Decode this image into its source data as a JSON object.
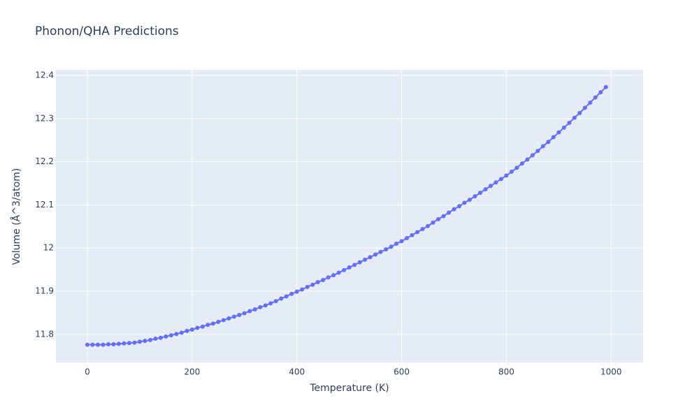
{
  "chart_data": {
    "type": "line",
    "title": "Phonon/QHA Predictions",
    "x_label": "Temperature (K)",
    "y_label": "Volume (Å^3/atom)",
    "x": [
      0,
      10,
      20,
      30,
      40,
      50,
      60,
      70,
      80,
      90,
      100,
      110,
      120,
      130,
      140,
      150,
      160,
      170,
      180,
      190,
      200,
      210,
      220,
      230,
      240,
      250,
      260,
      270,
      280,
      290,
      300,
      310,
      320,
      330,
      340,
      350,
      360,
      370,
      380,
      390,
      400,
      410,
      420,
      430,
      440,
      450,
      460,
      470,
      480,
      490,
      500,
      510,
      520,
      530,
      540,
      550,
      560,
      570,
      580,
      590,
      600,
      610,
      620,
      630,
      640,
      650,
      660,
      670,
      680,
      690,
      700,
      710,
      720,
      730,
      740,
      750,
      760,
      770,
      780,
      790,
      800,
      810,
      820,
      830,
      840,
      850,
      860,
      870,
      880,
      890,
      900,
      910,
      920,
      930,
      940,
      950,
      960,
      970,
      980,
      990
    ],
    "series": [
      {
        "color": "#636efa",
        "values": [
          11.776,
          11.776,
          11.776,
          11.776,
          11.777,
          11.777,
          11.778,
          11.779,
          11.78,
          11.781,
          11.783,
          11.785,
          11.787,
          11.79,
          11.792,
          11.795,
          11.798,
          11.801,
          11.804,
          11.808,
          11.811,
          11.815,
          11.818,
          11.822,
          11.825,
          11.829,
          11.833,
          11.837,
          11.841,
          11.845,
          11.849,
          11.854,
          11.858,
          11.863,
          11.867,
          11.872,
          11.877,
          11.883,
          11.888,
          11.894,
          11.899,
          11.904,
          11.91,
          11.915,
          11.921,
          11.926,
          11.932,
          11.937,
          11.943,
          11.949,
          11.955,
          11.961,
          11.967,
          11.973,
          11.979,
          11.985,
          11.991,
          11.997,
          12.003,
          12.01,
          12.016,
          12.023,
          12.03,
          12.037,
          12.044,
          12.051,
          12.059,
          12.067,
          12.074,
          12.082,
          12.09,
          12.097,
          12.105,
          12.112,
          12.12,
          12.128,
          12.136,
          12.144,
          12.152,
          12.16,
          12.168,
          12.177,
          12.186,
          12.196,
          12.205,
          12.215,
          12.225,
          12.236,
          12.246,
          12.257,
          12.268,
          12.279,
          12.29,
          12.302,
          12.313,
          12.325,
          12.337,
          12.349,
          12.361,
          12.373
        ]
      }
    ],
    "xlim": [
      -60,
      1061
    ],
    "ylim": [
      11.735,
      12.413
    ],
    "xticks": [
      0,
      200,
      400,
      600,
      800,
      1000
    ],
    "yticks": [
      11.8,
      11.9,
      12,
      12.1,
      12.2,
      12.3,
      12.4
    ],
    "grid": true
  }
}
